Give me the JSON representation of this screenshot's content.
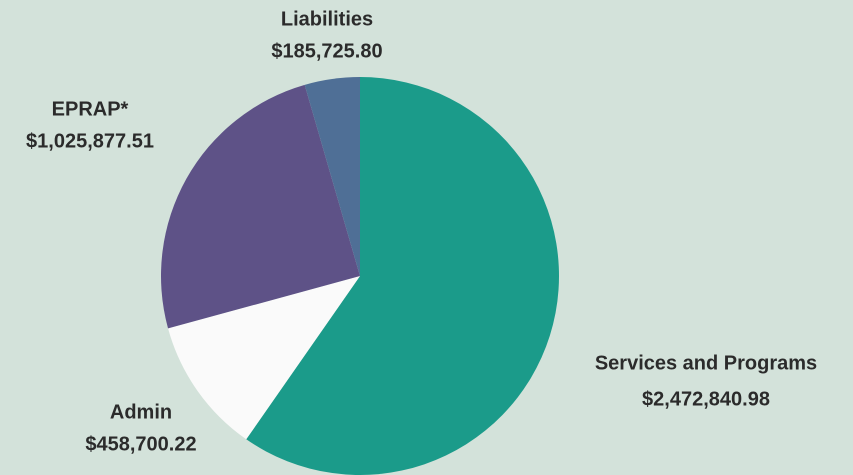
{
  "chart_data": {
    "type": "pie",
    "categories": [
      "Services and Programs",
      "Admin",
      "EPRAP*",
      "Liabilities"
    ],
    "values": [
      2472840.98,
      458700.22,
      1025877.51,
      185725.8
    ],
    "value_labels": [
      "$2,472,840.98",
      "$458,700.22",
      "$1,025,877.51",
      "$185,725.80"
    ],
    "colors": [
      "#1b9b8a",
      "#fafafa",
      "#5e5287",
      "#4f6f96"
    ]
  }
}
